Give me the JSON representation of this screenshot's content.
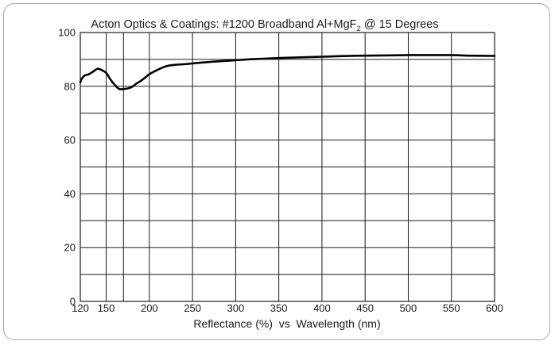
{
  "chart_data": {
    "type": "line",
    "title": {
      "prefix": "Acton Optics & Coatings: #1200 Broadband Al+MgF",
      "subscript": "2",
      "suffix": " @ 15 Degrees"
    },
    "xlabel": "Reflectance (%)  vs  Wavelength (nm)",
    "ylabel": "",
    "xlim": [
      120,
      600
    ],
    "ylim": [
      0,
      100
    ],
    "x_ticks": [
      120,
      150,
      200,
      250,
      300,
      350,
      400,
      450,
      500,
      550,
      600
    ],
    "y_ticks": [
      0,
      20,
      40,
      60,
      80,
      100
    ],
    "x_grid": [
      150,
      170,
      200,
      250,
      300,
      350,
      400,
      450,
      500,
      550
    ],
    "y_grid": [
      10,
      20,
      30,
      40,
      50,
      60,
      70,
      80,
      90
    ],
    "grid": true,
    "line_color": "#000000",
    "grid_color": "#1a1a1a",
    "series": [
      {
        "x": [
          120,
          122,
          125,
          130,
          135,
          140,
          145,
          150,
          155,
          160,
          165,
          170,
          175,
          180,
          185,
          190,
          195,
          200,
          210,
          220,
          230,
          240,
          250,
          260,
          280,
          300,
          320,
          350,
          380,
          400,
          420,
          450,
          480,
          500,
          520,
          550,
          570,
          600
        ],
        "y": [
          81.5,
          83,
          84,
          84.5,
          85.5,
          86.5,
          86,
          85,
          82.5,
          80.5,
          79,
          79,
          79.2,
          79.8,
          81,
          82,
          83.2,
          84.5,
          86.2,
          87.5,
          88,
          88.2,
          88.5,
          88.8,
          89.3,
          89.7,
          90.1,
          90.5,
          90.8,
          91,
          91.2,
          91.4,
          91.5,
          91.6,
          91.6,
          91.6,
          91.4,
          91.3
        ]
      }
    ]
  }
}
